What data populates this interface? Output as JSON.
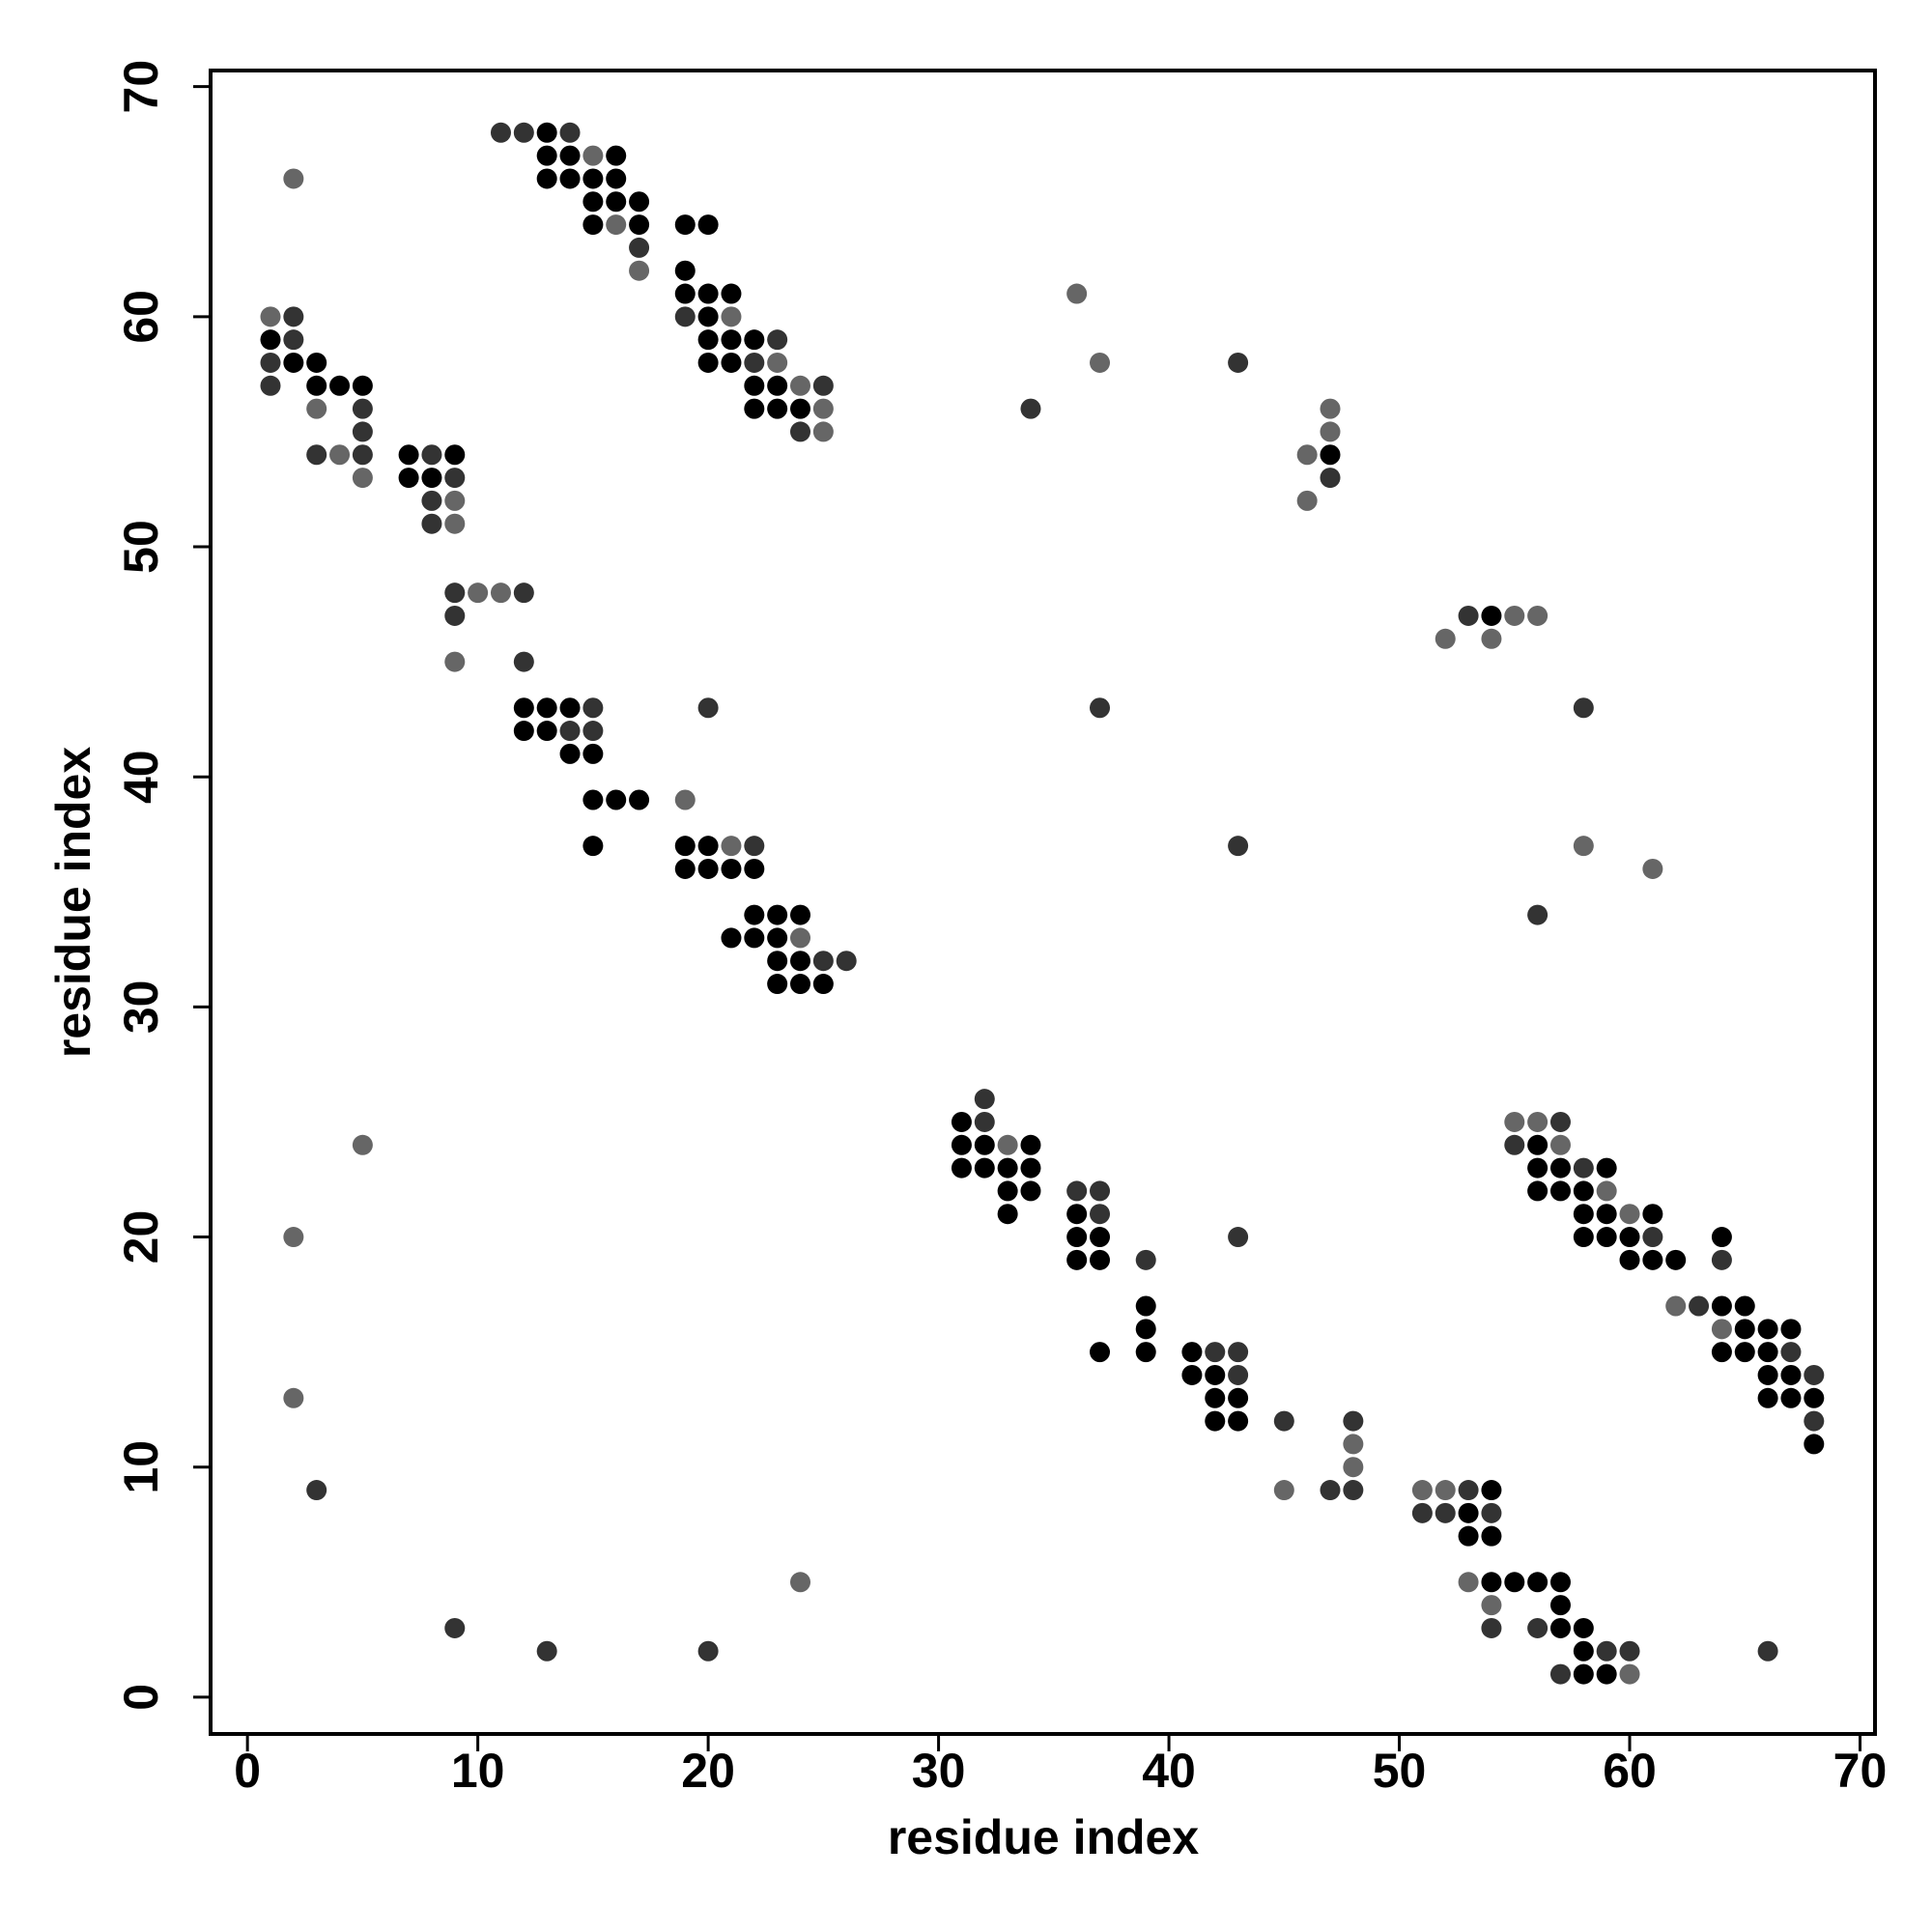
{
  "chart_data": {
    "type": "scatter",
    "xlabel": "residue index",
    "ylabel": "residue index",
    "xlim": [
      -1.6,
      70.65
    ],
    "ylim": [
      -1.6,
      70.7
    ],
    "xticks": [
      0,
      10,
      20,
      30,
      40,
      50,
      60,
      70
    ],
    "yticks": [
      0,
      10,
      20,
      30,
      40,
      50,
      60,
      70
    ],
    "series": [
      {
        "color": "#000000",
        "x": [
          13,
          13,
          14,
          16,
          13,
          14,
          15,
          16,
          15,
          16,
          17,
          15,
          17,
          19,
          20,
          19,
          19,
          20,
          21,
          20,
          1,
          20,
          21,
          22,
          2,
          3,
          20,
          21,
          3,
          4,
          5,
          22,
          23,
          22,
          23,
          24,
          7,
          9,
          47,
          7,
          8,
          54,
          12,
          13,
          14,
          12,
          13,
          14,
          15,
          15,
          16,
          17,
          15,
          19,
          20,
          19,
          20,
          21,
          22,
          22,
          23,
          24,
          21,
          22,
          23,
          23,
          24,
          23,
          24,
          25,
          31,
          31,
          32,
          34,
          56,
          31,
          32,
          33,
          34,
          56,
          57,
          59,
          33,
          34,
          56,
          57,
          58,
          33,
          36,
          58,
          59,
          61,
          36,
          37,
          58,
          59,
          60,
          64,
          36,
          37,
          60,
          61,
          62,
          39,
          64,
          65,
          39,
          65,
          66,
          67,
          37,
          39,
          41,
          64,
          65,
          66,
          41,
          42,
          66,
          67,
          42,
          43,
          66,
          67,
          68,
          42,
          43,
          68,
          54,
          53,
          53,
          54,
          54,
          55,
          56,
          57,
          57,
          57,
          58,
          58,
          58,
          59
        ],
        "y": [
          68,
          67,
          67,
          67,
          66,
          66,
          66,
          66,
          65,
          65,
          65,
          64,
          64,
          64,
          64,
          62,
          61,
          61,
          61,
          60,
          59,
          59,
          59,
          59,
          58,
          58,
          58,
          58,
          57,
          57,
          57,
          57,
          57,
          56,
          56,
          56,
          54,
          54,
          54,
          53,
          53,
          47,
          43,
          43,
          43,
          42,
          42,
          41,
          41,
          39,
          39,
          39,
          37,
          37,
          37,
          36,
          36,
          36,
          36,
          34,
          34,
          34,
          33,
          33,
          33,
          32,
          32,
          31,
          31,
          31,
          25,
          24,
          24,
          24,
          24,
          23,
          23,
          23,
          23,
          23,
          23,
          23,
          22,
          22,
          22,
          22,
          22,
          21,
          21,
          21,
          21,
          21,
          20,
          20,
          20,
          20,
          20,
          20,
          19,
          19,
          19,
          19,
          19,
          17,
          17,
          17,
          16,
          16,
          16,
          16,
          15,
          15,
          15,
          15,
          15,
          15,
          14,
          14,
          14,
          14,
          13,
          13,
          13,
          13,
          13,
          12,
          12,
          11,
          9,
          8,
          7,
          7,
          5,
          5,
          5,
          5,
          4,
          3,
          3,
          2,
          1,
          1
        ]
      },
      {
        "color": "#333333",
        "x": [
          11,
          12,
          14,
          17,
          2,
          19,
          2,
          23,
          1,
          22,
          43,
          1,
          25,
          5,
          34,
          5,
          24,
          3,
          5,
          8,
          9,
          47,
          8,
          8,
          9,
          12,
          9,
          53,
          12,
          15,
          20,
          37,
          58,
          14,
          15,
          22,
          43,
          56,
          25,
          26,
          32,
          32,
          57,
          55,
          58,
          36,
          37,
          37,
          43,
          61,
          39,
          64,
          63,
          42,
          43,
          67,
          43,
          68,
          45,
          48,
          68,
          3,
          47,
          48,
          53,
          51,
          52,
          54,
          9,
          54,
          56,
          13,
          20,
          59,
          60,
          66,
          57
        ],
        "y": [
          68,
          68,
          68,
          63,
          60,
          60,
          59,
          59,
          58,
          58,
          58,
          57,
          57,
          56,
          56,
          55,
          55,
          54,
          54,
          54,
          53,
          53,
          52,
          51,
          48,
          48,
          47,
          47,
          45,
          43,
          43,
          43,
          43,
          42,
          42,
          37,
          37,
          34,
          32,
          32,
          26,
          25,
          25,
          24,
          23,
          22,
          22,
          21,
          20,
          20,
          19,
          19,
          17,
          15,
          15,
          15,
          14,
          14,
          12,
          12,
          12,
          9,
          9,
          9,
          9,
          8,
          8,
          8,
          3,
          3,
          3,
          2,
          2,
          2,
          2,
          2,
          1
        ]
      },
      {
        "color": "#666666",
        "x": [
          15,
          2,
          16,
          17,
          36,
          1,
          21,
          23,
          37,
          24,
          3,
          25,
          47,
          25,
          47,
          4,
          46,
          5,
          9,
          46,
          9,
          10,
          11,
          55,
          56,
          52,
          54,
          9,
          19,
          21,
          58,
          61,
          24,
          55,
          56,
          5,
          33,
          57,
          59,
          60,
          2,
          62,
          64,
          2,
          48,
          48,
          45,
          51,
          52,
          24,
          53,
          54,
          60
        ],
        "y": [
          67,
          66,
          64,
          62,
          61,
          60,
          60,
          58,
          58,
          57,
          56,
          56,
          56,
          55,
          55,
          54,
          54,
          53,
          52,
          52,
          51,
          48,
          48,
          47,
          47,
          46,
          46,
          45,
          39,
          37,
          37,
          36,
          33,
          25,
          25,
          24,
          24,
          24,
          22,
          21,
          20,
          17,
          16,
          13,
          11,
          10,
          9,
          9,
          9,
          5,
          5,
          4,
          1
        ]
      }
    ]
  }
}
